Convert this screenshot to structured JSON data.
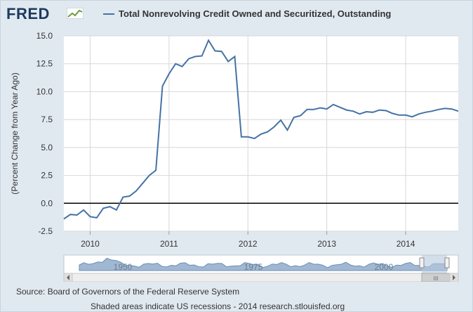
{
  "brand": {
    "logo_text": "FRED"
  },
  "chart_data": {
    "type": "line",
    "title": "",
    "series": [
      {
        "name": "Total Nonrevolving Credit Owned and Securitized, Outstanding",
        "color": "#4572a7",
        "points": [
          [
            "2009-09",
            -1.4
          ],
          [
            "2009-10",
            -1.0
          ],
          [
            "2009-11",
            -1.05
          ],
          [
            "2009-12",
            -0.6
          ],
          [
            "2010-01",
            -1.2
          ],
          [
            "2010-02",
            -1.3
          ],
          [
            "2010-03",
            -0.45
          ],
          [
            "2010-04",
            -0.3
          ],
          [
            "2010-05",
            -0.6
          ],
          [
            "2010-06",
            0.55
          ],
          [
            "2010-07",
            0.65
          ],
          [
            "2010-08",
            1.1
          ],
          [
            "2010-09",
            1.8
          ],
          [
            "2010-10",
            2.5
          ],
          [
            "2010-11",
            2.95
          ],
          [
            "2010-12",
            10.5
          ],
          [
            "2011-01",
            11.6
          ],
          [
            "2011-02",
            12.5
          ],
          [
            "2011-03",
            12.25
          ],
          [
            "2011-04",
            12.95
          ],
          [
            "2011-05",
            13.15
          ],
          [
            "2011-06",
            13.2
          ],
          [
            "2011-07",
            14.6
          ],
          [
            "2011-08",
            13.65
          ],
          [
            "2011-09",
            13.6
          ],
          [
            "2011-10",
            12.7
          ],
          [
            "2011-11",
            13.15
          ],
          [
            "2011-12",
            5.95
          ],
          [
            "2012-01",
            5.95
          ],
          [
            "2012-02",
            5.8
          ],
          [
            "2012-03",
            6.2
          ],
          [
            "2012-04",
            6.4
          ],
          [
            "2012-05",
            6.85
          ],
          [
            "2012-06",
            7.45
          ],
          [
            "2012-07",
            6.55
          ],
          [
            "2012-08",
            7.7
          ],
          [
            "2012-09",
            7.85
          ],
          [
            "2012-10",
            8.4
          ],
          [
            "2012-11",
            8.4
          ],
          [
            "2012-12",
            8.55
          ],
          [
            "2013-01",
            8.45
          ],
          [
            "2013-02",
            8.85
          ],
          [
            "2013-03",
            8.6
          ],
          [
            "2013-04",
            8.35
          ],
          [
            "2013-05",
            8.25
          ],
          [
            "2013-06",
            8.0
          ],
          [
            "2013-07",
            8.2
          ],
          [
            "2013-08",
            8.15
          ],
          [
            "2013-09",
            8.35
          ],
          [
            "2013-10",
            8.3
          ],
          [
            "2013-11",
            8.05
          ],
          [
            "2013-12",
            7.9
          ],
          [
            "2014-01",
            7.9
          ],
          [
            "2014-02",
            7.75
          ],
          [
            "2014-03",
            8.0
          ],
          [
            "2014-04",
            8.15
          ],
          [
            "2014-05",
            8.25
          ],
          [
            "2014-06",
            8.4
          ],
          [
            "2014-07",
            8.5
          ],
          [
            "2014-08",
            8.45
          ],
          [
            "2014-09",
            8.25
          ]
        ]
      }
    ],
    "ylabel": "(Percent Change from Year Ago)",
    "ylim": [
      -2.5,
      15.0
    ],
    "yticks": [
      "15.0",
      "12.5",
      "10.0",
      "7.5",
      "5.0",
      "2.5",
      "0.0",
      "-2.5"
    ],
    "xticks": [
      "2010",
      "2011",
      "2012",
      "2013",
      "2014"
    ],
    "xrange": [
      "2009-09",
      "2014-09"
    ],
    "grid": true,
    "zero_line": true,
    "legend_position": "top"
  },
  "navigator": {
    "labels": [
      "1950",
      "1975",
      "2000"
    ],
    "scrollbar_grip": "III"
  },
  "footer": {
    "source": "Source: Board of Governors of the Federal Reserve System",
    "note": "Shaded areas indicate US recessions - 2014 research.stlouisfed.org"
  }
}
